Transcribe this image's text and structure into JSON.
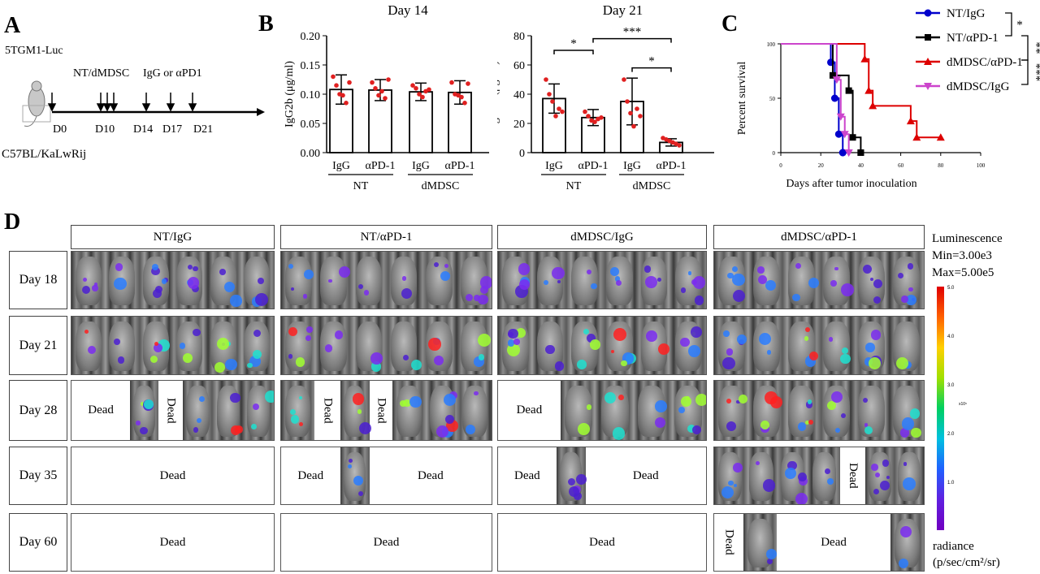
{
  "panels": {
    "a": "A",
    "b": "B",
    "c": "C",
    "d": "D"
  },
  "panel_a": {
    "cell_line": "5TGM1-Luc",
    "injection": "NT/dMDSC",
    "treatment": "IgG or αPD1",
    "days": [
      "D0",
      "D10",
      "D14",
      "D17",
      "D21"
    ],
    "strain": "C57BL/KaLwRij"
  },
  "chart_data": [
    {
      "type": "bar",
      "title": "Day 14",
      "ylabel": "IgG2b (μg/ml)",
      "ylim": [
        0,
        0.2
      ],
      "yticks": [
        "0.00",
        "0.05",
        "0.10",
        "0.15",
        "0.20"
      ],
      "categories": [
        "IgG",
        "αPD-1",
        "IgG",
        "αPD-1"
      ],
      "groups": [
        "NT",
        "dMDSC"
      ],
      "values": [
        0.108,
        0.107,
        0.104,
        0.103
      ],
      "errors": [
        0.025,
        0.018,
        0.015,
        0.02
      ],
      "points": [
        [
          0.13,
          0.115,
          0.1,
          0.098,
          0.085,
          0.12
        ],
        [
          0.12,
          0.11,
          0.098,
          0.105,
          0.093,
          0.125
        ],
        [
          0.115,
          0.11,
          0.1,
          0.095,
          0.105,
          0.108
        ],
        [
          0.12,
          0.1,
          0.098,
          0.095,
          0.085,
          0.118
        ]
      ]
    },
    {
      "type": "bar",
      "title": "Day 21",
      "ylabel": "IgG2b (μg/ml)",
      "ylim": [
        0,
        80
      ],
      "yticks": [
        "0",
        "20",
        "40",
        "60",
        "80"
      ],
      "categories": [
        "IgG",
        "αPD-1",
        "IgG",
        "αPD-1"
      ],
      "groups": [
        "NT",
        "dMDSC"
      ],
      "values": [
        37,
        24,
        35,
        7
      ],
      "errors": [
        10,
        5.5,
        16,
        2.5
      ],
      "points": [
        [
          50,
          40,
          35,
          25,
          30,
          28
        ],
        [
          28,
          25,
          22,
          21,
          23,
          24
        ],
        [
          50,
          35,
          27,
          18,
          30,
          25
        ],
        [
          10,
          9,
          8,
          7,
          6,
          5
        ]
      ],
      "significance": [
        "*",
        "***",
        "*"
      ]
    },
    {
      "type": "line",
      "ylabel": "Percent survival",
      "xlabel": "Days after tumor inoculation",
      "xlim": [
        0,
        100
      ],
      "ylim": [
        0,
        100
      ],
      "xticks": [
        "0",
        "20",
        "40",
        "60",
        "80",
        "100"
      ],
      "yticks": [
        "0",
        "50",
        "100"
      ],
      "series": [
        {
          "name": "NT/IgG",
          "color": "#0000cc",
          "marker": "circle",
          "x": [
            0,
            25,
            25,
            27,
            27,
            29,
            29,
            31,
            31
          ],
          "y": [
            100,
            100,
            83,
            83,
            50,
            50,
            17,
            17,
            0
          ]
        },
        {
          "name": "NT/αPD-1",
          "color": "#000000",
          "marker": "square",
          "x": [
            0,
            26,
            26,
            28,
            28,
            34,
            34,
            36,
            36,
            40,
            40
          ],
          "y": [
            100,
            100,
            71,
            71,
            71,
            71,
            57,
            57,
            14,
            14,
            0
          ]
        },
        {
          "name": "dMDSC/αPD-1",
          "color": "#dd0000",
          "marker": "triangle",
          "x": [
            0,
            42,
            42,
            44,
            44,
            46,
            46,
            65,
            65,
            68,
            68,
            80
          ],
          "y": [
            100,
            100,
            86,
            86,
            57,
            57,
            43,
            43,
            29,
            29,
            14,
            14
          ]
        },
        {
          "name": "dMDSC/IgG",
          "color": "#cc44cc",
          "marker": "triangle-down",
          "x": [
            0,
            28,
            28,
            30,
            30,
            32,
            32,
            34,
            34
          ],
          "y": [
            100,
            100,
            67,
            67,
            33,
            33,
            17,
            17,
            0
          ]
        }
      ],
      "significance": [
        "*",
        "**",
        "***"
      ]
    }
  ],
  "panel_d": {
    "groups": [
      "NT/IgG",
      "NT/αPD-1",
      "dMDSC/IgG",
      "dMDSC/αPD-1"
    ],
    "rows": [
      "Day 18",
      "Day 21",
      "Day 28",
      "Day 35",
      "Day 60"
    ],
    "dead": "Dead",
    "legend": {
      "title": "Luminescence",
      "min": "Min=3.00e3",
      "max": "Max=5.00e5",
      "ticks": [
        "5.0",
        "4.0",
        "3.0",
        "2.0",
        "1.0"
      ],
      "scale": "x10⁵",
      "unit_label": "radiance",
      "unit": "(p/sec/cm²/sr)"
    }
  }
}
